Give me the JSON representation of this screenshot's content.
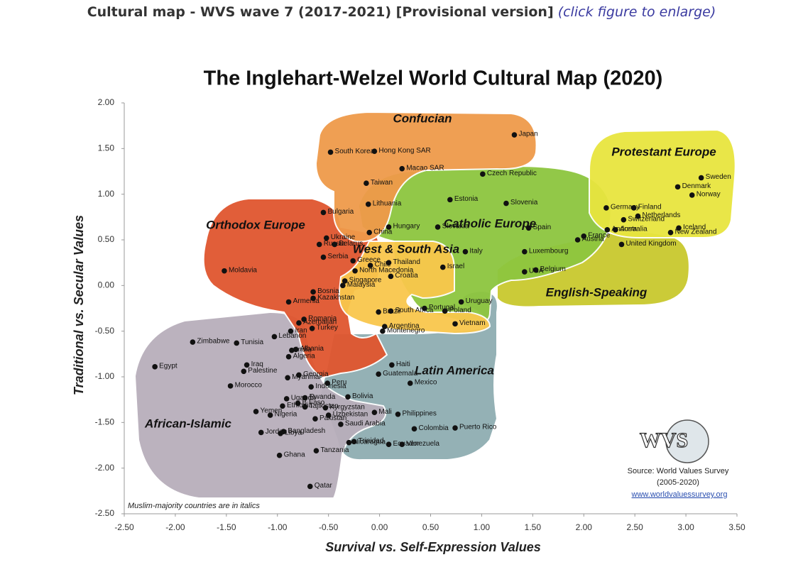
{
  "header": {
    "title": "Cultural map - WVS wave 7 (2017-2021) [Provisional version]",
    "link": "(click figure to enlarge)"
  },
  "chart_data": {
    "type": "scatter",
    "title": "The Inglehart-Welzel World Cultural Map (2020)",
    "x_label": "Survival vs. Self-Expression Values",
    "y_label": "Traditional vs. Secular Values",
    "note": "Muslim-majority countries are in italics",
    "source": [
      "Source: World Values Survey",
      "(2005-2020)"
    ],
    "source_url": "www.worldvaluessurvey.org",
    "logo_text": "WVS",
    "marker_color": "#111111",
    "xlim": [
      -2.5,
      3.5
    ],
    "ylim": [
      -2.5,
      2.0
    ],
    "xticks": [
      {
        "value": -2.5,
        "label": "-2.50"
      },
      {
        "value": -2.0,
        "label": "-2.00"
      },
      {
        "value": -1.5,
        "label": "-1.50"
      },
      {
        "value": -1.0,
        "label": "-1.00"
      },
      {
        "value": -0.5,
        "label": "-0.50"
      },
      {
        "value": 0,
        "label": "0.00"
      },
      {
        "value": 0.5,
        "label": "0.50"
      },
      {
        "value": 1.0,
        "label": "1.00"
      },
      {
        "value": 1.5,
        "label": "1.50"
      },
      {
        "value": 2.0,
        "label": "2.00"
      },
      {
        "value": 2.5,
        "label": "2.50"
      },
      {
        "value": 3.0,
        "label": "3.00"
      },
      {
        "value": 3.5,
        "label": "3.50"
      }
    ],
    "yticks": [
      {
        "value": -2.5,
        "label": "-2.50"
      },
      {
        "value": -2.0,
        "label": "-2.00"
      },
      {
        "value": -1.5,
        "label": "-1.50"
      },
      {
        "value": -1.0,
        "label": "-1.00"
      },
      {
        "value": -0.5,
        "label": "-0.50"
      },
      {
        "value": 0,
        "label": "0.00"
      },
      {
        "value": 0.5,
        "label": "0.50"
      },
      {
        "value": 1.0,
        "label": "1.00"
      },
      {
        "value": 1.5,
        "label": "1.50"
      },
      {
        "value": 2.0,
        "label": "2.00"
      }
    ],
    "series": [
      {
        "name": "Confucian",
        "color": "#ef9a4a",
        "labels": [
          "Japan",
          "South Korea",
          "Hong Kong SAR",
          "Macao SAR",
          "Taiwan",
          "China"
        ],
        "x": [
          1.32,
          -0.48,
          -0.05,
          0.22,
          -0.13,
          -0.1
        ],
        "values": [
          1.65,
          1.46,
          1.47,
          1.28,
          1.12,
          0.58
        ]
      },
      {
        "name": "Protestant Europe",
        "color": "#e8e53f",
        "labels": [
          "Denmark",
          "Sweden",
          "Norway",
          "Germany",
          "Finland",
          "Netherlands",
          "Switzerland",
          "Iceland"
        ],
        "x": [
          2.92,
          3.15,
          3.06,
          2.22,
          2.49,
          2.53,
          2.39,
          2.93
        ],
        "values": [
          1.08,
          1.18,
          0.99,
          0.85,
          0.85,
          0.76,
          0.72,
          0.63
        ]
      },
      {
        "name": "English-Speaking",
        "color": "#c9c92e",
        "labels": [
          "Australia",
          "New Zealand",
          "United Kingdom",
          "USA"
        ],
        "x": [
          2.31,
          2.85,
          2.37,
          1.42
        ],
        "values": [
          0.61,
          0.58,
          0.45,
          0.15
        ]
      },
      {
        "name": "Catholic Europe",
        "color": "#8dc63f",
        "labels": [
          "Czech Republic",
          "Estonia",
          "Lithuania",
          "Slovenia",
          "Hungary",
          "Slovakia",
          "Spain",
          "Italy",
          "Luxembourg",
          "Austria",
          "Andorra",
          "France",
          "Belgium",
          "Croatia",
          "Portugal",
          "Poland"
        ],
        "x": [
          1.01,
          0.69,
          -0.11,
          1.24,
          0.09,
          0.57,
          1.46,
          0.84,
          1.42,
          1.94,
          2.23,
          2.0,
          1.53,
          0.11,
          0.44,
          0.64
        ],
        "values": [
          1.22,
          0.94,
          0.89,
          0.9,
          0.64,
          0.64,
          0.63,
          0.37,
          0.37,
          0.5,
          0.61,
          0.54,
          0.17,
          0.1,
          -0.25,
          -0.28
        ]
      },
      {
        "name": "Orthodox Europe",
        "color": "#e0562f",
        "labels": [
          "Bulgaria",
          "Ukraine",
          "Russia",
          "Belarus",
          "Serbia",
          "Greece",
          "North Macedonia",
          "Moldavia",
          "Bosnia",
          "Armenia",
          "Kazakhstan",
          "Romania",
          "Montenegro",
          "Georgia"
        ],
        "x": [
          -0.55,
          -0.52,
          -0.59,
          -0.44,
          -0.55,
          -0.26,
          -0.24,
          -1.52,
          -0.65,
          -0.89,
          -0.65,
          -0.74,
          0.03,
          -0.79
        ],
        "values": [
          0.8,
          0.52,
          0.45,
          0.45,
          0.31,
          0.27,
          0.16,
          0.16,
          -0.07,
          -0.18,
          -0.14,
          -0.37,
          -0.5,
          -0.98
        ]
      },
      {
        "name": "West & South Asia",
        "color": "#f9c74c",
        "labels": [
          "Thailand",
          "Israel",
          "Singapore",
          "Malaysia",
          "South Africa",
          "Vietnam"
        ],
        "x": [
          0.09,
          0.62,
          -0.34,
          -0.36,
          0.11,
          0.74
        ],
        "values": [
          0.25,
          0.2,
          0.05,
          0.0,
          -0.28,
          -0.42
        ]
      },
      {
        "name": "Latin America",
        "color": "#8fadb2",
        "labels": [
          "Chile",
          "Brazil",
          "Uruguay",
          "Argentina",
          "Haiti",
          "Guatemala",
          "Mexico",
          "Peru",
          "Bolivia",
          "Philippines",
          "Puerto Rico",
          "Colombia",
          "Ecuador",
          "Trinidad",
          "Nicaragua",
          "Venezuela"
        ],
        "x": [
          -0.09,
          -0.01,
          0.8,
          0.05,
          0.12,
          -0.01,
          0.3,
          -0.51,
          -0.31,
          0.18,
          0.74,
          0.34,
          0.09,
          -0.25,
          -0.3,
          0.22
        ],
        "values": [
          0.22,
          -0.29,
          -0.18,
          -0.45,
          -0.87,
          -0.97,
          -1.07,
          -1.07,
          -1.22,
          -1.41,
          -1.56,
          -1.57,
          -1.74,
          -1.71,
          -1.72,
          -1.74
        ]
      },
      {
        "name": "African-Islamic",
        "color": "#b8aebb",
        "labels": [
          "Azerbaijan",
          "Iran",
          "Turkey",
          "Tunisia",
          "Lebanon",
          "Zimbabwe",
          "India",
          "Albania",
          "Algeria",
          "Egypt",
          "Iraq",
          "Palestine",
          "Morocco",
          "Myanmar",
          "Indonesia",
          "Rwanda",
          "Uganda",
          "Ethiopia",
          "B.Faso",
          "Tajikistan",
          "Kyrgyzstan",
          "Uzbekistan",
          "Pakistan",
          "Mali",
          "Nigeria",
          "Yemen",
          "Bangladesh",
          "Saudi Arabia",
          "Libya",
          "Jordan",
          "Ghana",
          "Tanzania",
          "Qatar"
        ],
        "x": [
          -0.79,
          -0.87,
          -0.66,
          -1.4,
          -1.03,
          -1.83,
          -0.86,
          -0.82,
          -0.89,
          -2.2,
          -1.3,
          -1.33,
          -1.46,
          -0.9,
          -0.67,
          -0.73,
          -0.91,
          -0.95,
          -0.8,
          -0.73,
          -0.53,
          -0.5,
          -0.63,
          -0.05,
          -1.07,
          -1.21,
          -0.94,
          -0.38,
          -0.97,
          -1.16,
          -0.98,
          -0.62,
          -0.68
        ],
        "values": [
          -0.41,
          -0.5,
          -0.47,
          -0.63,
          -0.56,
          -0.62,
          -0.71,
          -0.7,
          -0.78,
          -0.89,
          -0.87,
          -0.94,
          -1.1,
          -1.01,
          -1.11,
          -1.23,
          -1.24,
          -1.32,
          -1.29,
          -1.33,
          -1.34,
          -1.42,
          -1.46,
          -1.39,
          -1.42,
          -1.38,
          -1.6,
          -1.52,
          -1.62,
          -1.61,
          -1.86,
          -1.81,
          -2.2
        ]
      }
    ]
  }
}
